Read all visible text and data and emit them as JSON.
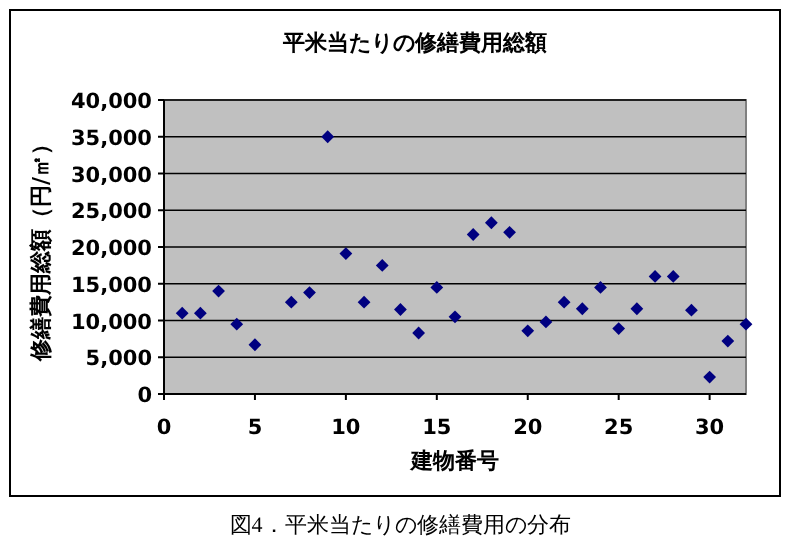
{
  "chart_data": {
    "type": "scatter",
    "title": "平米当たりの修繕費用総額",
    "xlabel": "建物番号",
    "ylabel": "修繕費用総額（円/㎡）",
    "annotations": [
      "図4．平米当たりの修繕費用の分布"
    ],
    "x": [
      1,
      2,
      3,
      4,
      5,
      7,
      8,
      9,
      10,
      11,
      12,
      13,
      14,
      15,
      16,
      17,
      18,
      19,
      20,
      21,
      22,
      23,
      24,
      25,
      26,
      27,
      28,
      29,
      30,
      31,
      32
    ],
    "series": [
      {
        "color": "#000080",
        "values": [
          11000,
          11000,
          14000,
          9500,
          6700,
          12500,
          13800,
          35000,
          19100,
          12500,
          17500,
          11500,
          8300,
          14500,
          10500,
          21700,
          23300,
          22000,
          8600,
          9800,
          12500,
          11600,
          14500,
          8900,
          11600,
          16000,
          16000,
          11400,
          2300,
          7200,
          9500
        ]
      }
    ],
    "xlim": [
      0,
      32
    ],
    "xticks": [
      0,
      5,
      10,
      15,
      20,
      25,
      30
    ],
    "ylim": [
      0,
      40000
    ],
    "yticks": [
      {
        "value": 0,
        "label": "0"
      },
      {
        "value": 5000,
        "label": "5,000"
      },
      {
        "value": 10000,
        "label": "10,000"
      },
      {
        "value": 15000,
        "label": "15,000"
      },
      {
        "value": 20000,
        "label": "20,000"
      },
      {
        "value": 25000,
        "label": "25,000"
      },
      {
        "value": 30000,
        "label": "30,000"
      },
      {
        "value": 35000,
        "label": "35,000"
      },
      {
        "value": 40000,
        "label": "40,000"
      }
    ],
    "grid": "y",
    "marker": "diamond"
  }
}
